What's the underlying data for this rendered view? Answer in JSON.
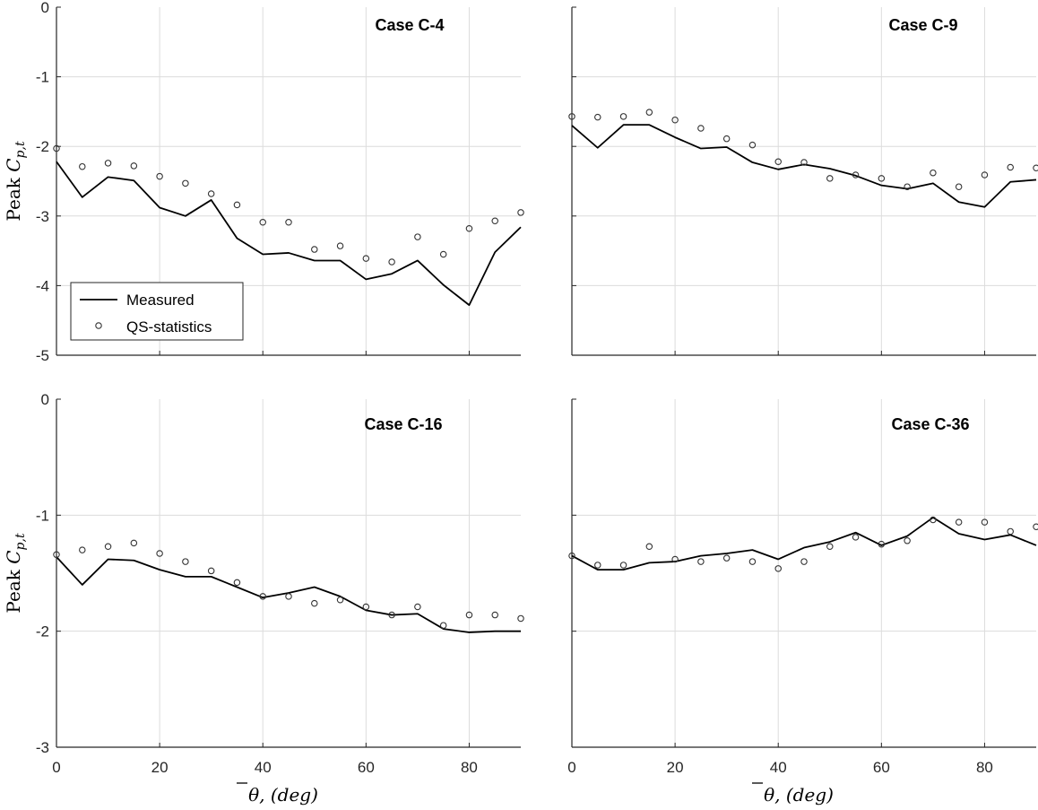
{
  "chart_data": {
    "type": "line",
    "layout": "2x2",
    "shared_x": [
      0,
      5,
      10,
      15,
      20,
      25,
      30,
      35,
      40,
      45,
      50,
      55,
      60,
      65,
      70,
      75,
      80,
      85,
      90
    ],
    "xlabel_main": "θ",
    "xlabel_rest": ", (deg)",
    "ylabel_main": "Peak C",
    "ylabel_sub": "p,t",
    "legend": {
      "measured": "Measured",
      "qs": "QS-statistics",
      "placement": "bottom-left"
    },
    "panels": [
      {
        "title": "Case C-4",
        "ylim": [
          -5,
          0
        ],
        "yticks": [
          0,
          -1,
          -2,
          -3,
          -4,
          -5
        ],
        "yticklabels": [
          "0",
          "-1",
          "-2",
          "-3",
          "-4",
          "-5"
        ],
        "xticks": [
          0,
          20,
          40,
          60,
          80
        ],
        "xticklabels": [
          "",
          "",
          "",
          "",
          ""
        ],
        "show_ytick_labels": true,
        "show_legend": true,
        "series": [
          {
            "name": "Measured",
            "style": "line",
            "values": [
              -2.22,
              -2.73,
              -2.44,
              -2.49,
              -2.88,
              -3.0,
              -2.77,
              -3.32,
              -3.55,
              -3.53,
              -3.64,
              -3.64,
              -3.91,
              -3.83,
              -3.64,
              -3.99,
              -4.28,
              -3.52,
              -3.16
            ]
          },
          {
            "name": "QS-statistics",
            "style": "markers",
            "values": [
              -2.03,
              -2.29,
              -2.24,
              -2.28,
              -2.43,
              -2.53,
              -2.68,
              -2.84,
              -3.09,
              -3.09,
              -3.48,
              -3.43,
              -3.61,
              -3.66,
              -3.3,
              -3.55,
              -3.18,
              -3.07,
              -2.95
            ]
          }
        ]
      },
      {
        "title": "Case C-9",
        "ylim": [
          -5,
          0
        ],
        "yticks": [
          0,
          -1,
          -2,
          -3,
          -4,
          -5
        ],
        "yticklabels": [
          "",
          "",
          "",
          "",
          "",
          ""
        ],
        "xticks": [
          0,
          20,
          40,
          60,
          80
        ],
        "xticklabels": [
          "",
          "",
          "",
          "",
          ""
        ],
        "show_ytick_labels": false,
        "show_legend": false,
        "series": [
          {
            "name": "Measured",
            "style": "line",
            "values": [
              -1.7,
              -2.02,
              -1.69,
              -1.69,
              -1.87,
              -2.03,
              -2.01,
              -2.23,
              -2.33,
              -2.26,
              -2.32,
              -2.42,
              -2.56,
              -2.61,
              -2.53,
              -2.8,
              -2.87,
              -2.51,
              -2.48
            ]
          },
          {
            "name": "QS-statistics",
            "style": "markers",
            "values": [
              -1.57,
              -1.58,
              -1.57,
              -1.51,
              -1.62,
              -1.74,
              -1.89,
              -1.98,
              -2.22,
              -2.23,
              -2.46,
              -2.41,
              -2.46,
              -2.58,
              -2.38,
              -2.58,
              -2.41,
              -2.3,
              -2.31
            ]
          }
        ]
      },
      {
        "title": "Case C-16",
        "ylim": [
          -3,
          0
        ],
        "yticks": [
          0,
          -1,
          -2,
          -3
        ],
        "yticklabels": [
          "0",
          "-1",
          "-2",
          "-3"
        ],
        "xticks": [
          0,
          20,
          40,
          60,
          80
        ],
        "xticklabels": [
          "0",
          "20",
          "40",
          "60",
          "80"
        ],
        "show_ytick_labels": true,
        "show_legend": false,
        "series": [
          {
            "name": "Measured",
            "style": "line",
            "values": [
              -1.36,
              -1.6,
              -1.38,
              -1.39,
              -1.47,
              -1.53,
              -1.53,
              -1.62,
              -1.71,
              -1.67,
              -1.62,
              -1.7,
              -1.82,
              -1.86,
              -1.85,
              -1.98,
              -2.01,
              -2.0,
              -2.0
            ]
          },
          {
            "name": "QS-statistics",
            "style": "markers",
            "values": [
              -1.34,
              -1.3,
              -1.27,
              -1.24,
              -1.33,
              -1.4,
              -1.48,
              -1.58,
              -1.7,
              -1.7,
              -1.76,
              -1.73,
              -1.79,
              -1.86,
              -1.79,
              -1.95,
              -1.86,
              -1.86,
              -1.89
            ]
          }
        ]
      },
      {
        "title": "Case C-36",
        "ylim": [
          -3,
          0
        ],
        "yticks": [
          0,
          -1,
          -2,
          -3
        ],
        "yticklabels": [
          "",
          "",
          "",
          ""
        ],
        "xticks": [
          0,
          20,
          40,
          60,
          80
        ],
        "xticklabels": [
          "0",
          "20",
          "40",
          "60",
          "80"
        ],
        "show_ytick_labels": false,
        "show_legend": false,
        "series": [
          {
            "name": "Measured",
            "style": "line",
            "values": [
              -1.35,
              -1.47,
              -1.47,
              -1.41,
              -1.4,
              -1.35,
              -1.33,
              -1.3,
              -1.38,
              -1.28,
              -1.23,
              -1.15,
              -1.26,
              -1.18,
              -1.02,
              -1.16,
              -1.21,
              -1.17,
              -1.26
            ]
          },
          {
            "name": "QS-statistics",
            "style": "markers",
            "values": [
              -1.35,
              -1.43,
              -1.43,
              -1.27,
              -1.38,
              -1.4,
              -1.37,
              -1.4,
              -1.46,
              -1.4,
              -1.27,
              -1.19,
              -1.25,
              -1.22,
              -1.04,
              -1.06,
              -1.06,
              -1.14,
              -1.1
            ]
          }
        ]
      }
    ]
  }
}
